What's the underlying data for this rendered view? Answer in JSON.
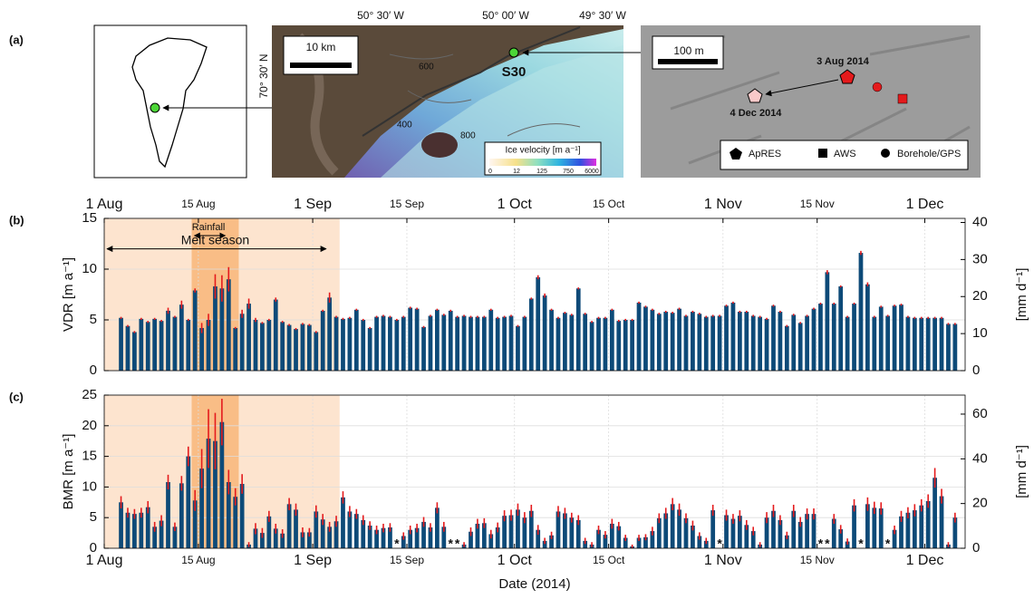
{
  "panel_a": {
    "label": "(a)",
    "map": {
      "lon_labels": [
        "50° 30′ W",
        "50° 00′ W",
        "49° 30′ W"
      ],
      "lat_label": "70° 30′ N",
      "scale": "10 km",
      "site": "S30",
      "contours": [
        "600",
        "400",
        "800"
      ],
      "velocity_title": "Ice velocity [m a⁻¹]",
      "velocity_ticks": [
        "0",
        "12",
        "125",
        "750",
        "6000"
      ]
    },
    "detail": {
      "scale": "100 m",
      "dates": [
        "3 Aug 2014",
        "4 Dec 2014"
      ],
      "legend": [
        "ApRES",
        "AWS",
        "Borehole/GPS"
      ]
    }
  },
  "chart_data": [
    {
      "type": "bar",
      "panel_label": "(b)",
      "ylabel": "VDR [m a⁻¹]",
      "y2label": "[mm d⁻¹]",
      "x": [
        "2014-08-03",
        "2014-08-04",
        "2014-08-05",
        "2014-08-06",
        "2014-08-07",
        "2014-08-08",
        "2014-08-09",
        "2014-08-10",
        "2014-08-11",
        "2014-08-12",
        "2014-08-13",
        "2014-08-14",
        "2014-08-15",
        "2014-08-16",
        "2014-08-17",
        "2014-08-18",
        "2014-08-19",
        "2014-08-20",
        "2014-08-21",
        "2014-08-22",
        "2014-08-23",
        "2014-08-24",
        "2014-08-25",
        "2014-08-26",
        "2014-08-27",
        "2014-08-28",
        "2014-08-29",
        "2014-08-30",
        "2014-08-31",
        "2014-09-01",
        "2014-09-02",
        "2014-09-03",
        "2014-09-04",
        "2014-09-05",
        "2014-09-06",
        "2014-09-07",
        "2014-09-08",
        "2014-09-09",
        "2014-09-10",
        "2014-09-11",
        "2014-09-12",
        "2014-09-13",
        "2014-09-14",
        "2014-09-15",
        "2014-09-16",
        "2014-09-17",
        "2014-09-18",
        "2014-09-19",
        "2014-09-20",
        "2014-09-21",
        "2014-09-22",
        "2014-09-23",
        "2014-09-24",
        "2014-09-25",
        "2014-09-26",
        "2014-09-27",
        "2014-09-28",
        "2014-09-29",
        "2014-09-30",
        "2014-10-01",
        "2014-10-02",
        "2014-10-03",
        "2014-10-04",
        "2014-10-05",
        "2014-10-06",
        "2014-10-07",
        "2014-10-08",
        "2014-10-09",
        "2014-10-10",
        "2014-10-11",
        "2014-10-12",
        "2014-10-13",
        "2014-10-14",
        "2014-10-15",
        "2014-10-16",
        "2014-10-17",
        "2014-10-18",
        "2014-10-19",
        "2014-10-20",
        "2014-10-21",
        "2014-10-22",
        "2014-10-23",
        "2014-10-24",
        "2014-10-25",
        "2014-10-26",
        "2014-10-27",
        "2014-10-28",
        "2014-10-29",
        "2014-10-30",
        "2014-10-31",
        "2014-11-01",
        "2014-11-02",
        "2014-11-03",
        "2014-11-04",
        "2014-11-05",
        "2014-11-06",
        "2014-11-07",
        "2014-11-08",
        "2014-11-09",
        "2014-11-10",
        "2014-11-11",
        "2014-11-12",
        "2014-11-13",
        "2014-11-14",
        "2014-11-15",
        "2014-11-16",
        "2014-11-17",
        "2014-11-18",
        "2014-11-19",
        "2014-11-20",
        "2014-11-21",
        "2014-11-22",
        "2014-11-23",
        "2014-11-24",
        "2014-11-25",
        "2014-11-26",
        "2014-11-27",
        "2014-11-28",
        "2014-11-29",
        "2014-11-30",
        "2014-12-01",
        "2014-12-02",
        "2014-12-03",
        "2014-12-04",
        "2014-12-05"
      ],
      "values": [
        5.2,
        4.4,
        3.8,
        5.1,
        4.8,
        5.1,
        4.9,
        5.9,
        5.3,
        6.5,
        5.0,
        7.9,
        4.2,
        5.0,
        8.3,
        8.1,
        9.0,
        4.2,
        5.6,
        6.6,
        5.0,
        4.7,
        5.0,
        7.0,
        4.8,
        4.5,
        4.1,
        4.6,
        4.5,
        3.8,
        5.9,
        7.2,
        5.3,
        5.1,
        5.2,
        6.0,
        5.0,
        4.2,
        5.3,
        5.4,
        5.3,
        5.0,
        5.3,
        6.2,
        6.1,
        4.3,
        5.4,
        6.0,
        5.5,
        5.9,
        5.3,
        5.4,
        5.3,
        5.3,
        5.3,
        6.0,
        5.2,
        5.3,
        5.4,
        4.4,
        5.3,
        7.1,
        9.2,
        7.4,
        6.0,
        5.2,
        5.7,
        5.5,
        8.1,
        5.6,
        4.8,
        5.2,
        5.2,
        6.0,
        4.9,
        5.0,
        5.0,
        6.7,
        6.3,
        6.0,
        5.6,
        5.8,
        5.7,
        6.1,
        5.4,
        5.8,
        5.6,
        5.3,
        5.4,
        5.4,
        6.4,
        6.7,
        5.8,
        5.8,
        5.4,
        5.3,
        5.1,
        6.4,
        5.8,
        4.4,
        5.5,
        4.7,
        5.4,
        6.1,
        6.6,
        9.7,
        6.6,
        8.3,
        5.3,
        6.6,
        11.6,
        8.5,
        5.3,
        6.3,
        5.4,
        6.4,
        6.5,
        5.3,
        5.2,
        5.2,
        5.2,
        5.2,
        5.2,
        4.6,
        4.6
      ],
      "errors": [
        0.1,
        0.1,
        0.1,
        0.1,
        0.1,
        0.1,
        0.1,
        0.3,
        0.1,
        0.4,
        0.1,
        0.2,
        0.5,
        0.6,
        1.2,
        1.3,
        1.2,
        0.1,
        0.4,
        0.5,
        0.2,
        0.1,
        0.1,
        0.2,
        0.1,
        0.1,
        0.1,
        0.1,
        0.1,
        0.1,
        0.1,
        0.5,
        0.1,
        0.1,
        0.1,
        0.1,
        0.1,
        0.1,
        0.1,
        0.1,
        0.1,
        0.1,
        0.1,
        0.1,
        0.1,
        0.1,
        0.1,
        0.1,
        0.1,
        0.1,
        0.1,
        0.1,
        0.1,
        0.1,
        0.1,
        0.1,
        0.1,
        0.1,
        0.1,
        0.1,
        0.1,
        0.1,
        0.2,
        0.2,
        0.1,
        0.1,
        0.1,
        0.1,
        0.1,
        0.1,
        0.1,
        0.1,
        0.1,
        0.1,
        0.1,
        0.1,
        0.1,
        0.1,
        0.1,
        0.1,
        0.1,
        0.1,
        0.1,
        0.1,
        0.1,
        0.1,
        0.1,
        0.1,
        0.1,
        0.1,
        0.1,
        0.1,
        0.1,
        0.1,
        0.1,
        0.1,
        0.1,
        0.1,
        0.1,
        0.1,
        0.1,
        0.1,
        0.1,
        0.1,
        0.1,
        0.2,
        0.1,
        0.1,
        0.1,
        0.1,
        0.2,
        0.2,
        0.1,
        0.1,
        0.1,
        0.1,
        0.1,
        0.1,
        0.1,
        0.1,
        0.1,
        0.1,
        0.1,
        0.1,
        0.1
      ],
      "color": "#0d4a78",
      "error_color": "#e41a1c",
      "xlim": [
        "2014-08-01",
        "2014-12-07"
      ],
      "xticks": [
        {
          "value": "2014-08-01",
          "label": "1 Aug"
        },
        {
          "value": "2014-08-15",
          "label": "15 Aug"
        },
        {
          "value": "2014-09-01",
          "label": "1 Sep"
        },
        {
          "value": "2014-09-15",
          "label": "15 Sep"
        },
        {
          "value": "2014-10-01",
          "label": "1 Oct"
        },
        {
          "value": "2014-10-15",
          "label": "15 Oct"
        },
        {
          "value": "2014-11-01",
          "label": "1 Nov"
        },
        {
          "value": "2014-11-15",
          "label": "15 Nov"
        },
        {
          "value": "2014-12-01",
          "label": "1 Dec"
        }
      ],
      "xticks_side": "top",
      "ylim": [
        0,
        15
      ],
      "yticks": [
        0,
        5,
        10,
        15
      ],
      "y2lim": [
        0,
        41.1
      ],
      "y2ticks": [
        0,
        10,
        20,
        30,
        40
      ],
      "grid": true,
      "shaded": [
        {
          "start": "2014-08-01",
          "end": "2014-09-05",
          "color": "#fde4cf"
        },
        {
          "start": "2014-08-14",
          "end": "2014-08-21",
          "color": "#f9bd86"
        }
      ],
      "annotations": [
        {
          "text": "Melt season",
          "start": "2014-08-01",
          "end": "2014-09-03",
          "level": 12
        },
        {
          "text": "Rainfall",
          "start": "2014-08-14",
          "end": "2014-08-19",
          "level": 13.3
        }
      ]
    },
    {
      "type": "bar",
      "panel_label": "(c)",
      "ylabel": "BMR [m a⁻¹]",
      "y2label": "[mm d⁻¹]",
      "xlabel": "Date (2014)",
      "x": [
        "2014-08-03",
        "2014-08-04",
        "2014-08-05",
        "2014-08-06",
        "2014-08-07",
        "2014-08-08",
        "2014-08-09",
        "2014-08-10",
        "2014-08-11",
        "2014-08-12",
        "2014-08-13",
        "2014-08-14",
        "2014-08-15",
        "2014-08-16",
        "2014-08-17",
        "2014-08-18",
        "2014-08-19",
        "2014-08-20",
        "2014-08-21",
        "2014-08-22",
        "2014-08-23",
        "2014-08-24",
        "2014-08-25",
        "2014-08-26",
        "2014-08-27",
        "2014-08-28",
        "2014-08-29",
        "2014-08-30",
        "2014-08-31",
        "2014-09-01",
        "2014-09-02",
        "2014-09-03",
        "2014-09-04",
        "2014-09-05",
        "2014-09-06",
        "2014-09-07",
        "2014-09-08",
        "2014-09-09",
        "2014-09-10",
        "2014-09-11",
        "2014-09-12",
        "2014-09-13",
        "2014-09-14",
        "2014-09-15",
        "2014-09-16",
        "2014-09-17",
        "2014-09-18",
        "2014-09-19",
        "2014-09-20",
        "2014-09-21",
        "2014-09-22",
        "2014-09-23",
        "2014-09-24",
        "2014-09-25",
        "2014-09-26",
        "2014-09-27",
        "2014-09-28",
        "2014-09-29",
        "2014-09-30",
        "2014-10-01",
        "2014-10-02",
        "2014-10-03",
        "2014-10-04",
        "2014-10-05",
        "2014-10-06",
        "2014-10-07",
        "2014-10-08",
        "2014-10-09",
        "2014-10-10",
        "2014-10-11",
        "2014-10-12",
        "2014-10-13",
        "2014-10-14",
        "2014-10-15",
        "2014-10-16",
        "2014-10-17",
        "2014-10-18",
        "2014-10-19",
        "2014-10-20",
        "2014-10-21",
        "2014-10-22",
        "2014-10-23",
        "2014-10-24",
        "2014-10-25",
        "2014-10-26",
        "2014-10-27",
        "2014-10-28",
        "2014-10-29",
        "2014-10-30",
        "2014-10-31",
        "2014-11-01",
        "2014-11-02",
        "2014-11-03",
        "2014-11-04",
        "2014-11-05",
        "2014-11-06",
        "2014-11-07",
        "2014-11-08",
        "2014-11-09",
        "2014-11-10",
        "2014-11-11",
        "2014-11-12",
        "2014-11-13",
        "2014-11-14",
        "2014-11-15",
        "2014-11-16",
        "2014-11-17",
        "2014-11-18",
        "2014-11-19",
        "2014-11-20",
        "2014-11-21",
        "2014-11-22",
        "2014-11-23",
        "2014-11-24",
        "2014-11-25",
        "2014-11-26",
        "2014-11-27",
        "2014-11-28",
        "2014-11-29",
        "2014-11-30",
        "2014-12-01",
        "2014-12-02",
        "2014-12-03",
        "2014-12-04",
        "2014-12-05"
      ],
      "values": [
        7.5,
        5.8,
        5.6,
        5.8,
        6.7,
        3.5,
        4.5,
        10.8,
        3.5,
        10.6,
        15.0,
        7.8,
        13.0,
        17.9,
        17.5,
        20.6,
        10.8,
        8.4,
        10.5,
        0.6,
        3.2,
        2.5,
        5.2,
        3.2,
        2.4,
        7.2,
        6.3,
        2.6,
        2.6,
        6.0,
        4.7,
        3.5,
        4.4,
        8.3,
        6.0,
        5.6,
        4.6,
        3.7,
        3.0,
        3.3,
        3.4,
        null,
        2.0,
        3.0,
        3.3,
        4.3,
        3.4,
        6.6,
        3.5,
        null,
        null,
        0.6,
        2.7,
        4.0,
        4.1,
        2.3,
        3.4,
        5.3,
        5.4,
        6.3,
        5.0,
        6.1,
        3.0,
        1.2,
        2.1,
        6.0,
        5.7,
        5.0,
        4.6,
        1.2,
        0.6,
        3.0,
        2.2,
        4.0,
        3.6,
        1.7,
        0.3,
        1.7,
        1.8,
        2.8,
        4.9,
        5.7,
        7.2,
        6.3,
        4.9,
        3.7,
        2.0,
        1.2,
        6.2,
        null,
        5.4,
        4.8,
        5.3,
        3.8,
        2.8,
        0.6,
        5.0,
        6.1,
        4.6,
        2.1,
        6.1,
        4.3,
        5.6,
        5.6,
        null,
        null,
        4.8,
        3.1,
        1.1,
        7.0,
        null,
        7.2,
        6.6,
        6.5,
        null,
        3.0,
        5.2,
        5.8,
        6.2,
        7.0,
        7.7,
        11.5,
        8.5,
        0.6,
        5.0
      ],
      "errors": [
        1.0,
        0.8,
        0.8,
        0.8,
        1.0,
        0.8,
        0.9,
        1.2,
        0.7,
        1.2,
        1.6,
        1.7,
        3.2,
        4.8,
        4.6,
        3.8,
        2.0,
        1.4,
        1.6,
        0.4,
        0.9,
        0.8,
        0.9,
        0.8,
        0.7,
        1.0,
        1.0,
        0.8,
        0.7,
        1.0,
        0.9,
        0.8,
        0.9,
        1.0,
        0.9,
        0.8,
        0.8,
        0.7,
        0.7,
        0.7,
        0.7,
        null,
        0.6,
        0.7,
        0.7,
        0.8,
        0.7,
        0.9,
        0.8,
        null,
        null,
        0.4,
        0.7,
        0.8,
        0.8,
        0.7,
        0.8,
        0.9,
        0.9,
        1.0,
        0.9,
        1.0,
        0.8,
        0.5,
        0.6,
        0.9,
        0.9,
        0.8,
        0.8,
        0.5,
        0.4,
        0.7,
        0.6,
        0.8,
        0.7,
        0.5,
        0.3,
        0.5,
        0.5,
        0.7,
        0.8,
        0.9,
        1.0,
        1.0,
        0.8,
        0.8,
        0.6,
        0.5,
        0.9,
        null,
        0.9,
        0.8,
        0.9,
        0.8,
        0.7,
        0.4,
        0.9,
        1.0,
        0.8,
        0.6,
        1.0,
        0.8,
        0.9,
        0.9,
        null,
        null,
        0.8,
        0.7,
        0.5,
        1.0,
        null,
        1.1,
        1.0,
        1.0,
        null,
        0.7,
        0.9,
        0.9,
        1.0,
        1.0,
        1.1,
        1.6,
        1.2,
        0.4,
        0.8
      ],
      "color": "#0d4a78",
      "error_color": "#e41a1c",
      "missing_marker": "*",
      "missing_color": "#33cc33",
      "xlim": [
        "2014-08-01",
        "2014-12-07"
      ],
      "xticks": [
        {
          "value": "2014-08-01",
          "label": "1 Aug"
        },
        {
          "value": "2014-08-15",
          "label": "15 Aug"
        },
        {
          "value": "2014-09-01",
          "label": "1 Sep"
        },
        {
          "value": "2014-09-15",
          "label": "15 Sep"
        },
        {
          "value": "2014-10-01",
          "label": "1 Oct"
        },
        {
          "value": "2014-10-15",
          "label": "15 Oct"
        },
        {
          "value": "2014-11-01",
          "label": "1 Nov"
        },
        {
          "value": "2014-11-15",
          "label": "15 Nov"
        },
        {
          "value": "2014-12-01",
          "label": "1 Dec"
        }
      ],
      "xticks_side": "bottom",
      "ylim": [
        0,
        25
      ],
      "yticks": [
        0,
        5,
        10,
        15,
        20,
        25
      ],
      "y2lim": [
        0,
        68.5
      ],
      "y2ticks": [
        0,
        20,
        40,
        60
      ],
      "grid": true,
      "shaded": [
        {
          "start": "2014-08-01",
          "end": "2014-09-05",
          "color": "#fde4cf"
        },
        {
          "start": "2014-08-14",
          "end": "2014-08-21",
          "color": "#f9bd86"
        }
      ]
    }
  ]
}
